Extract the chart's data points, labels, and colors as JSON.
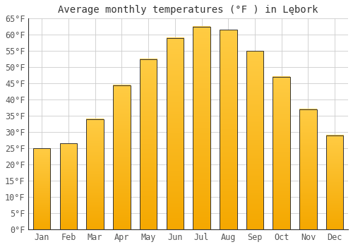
{
  "title": "Average monthly temperatures (°F ) in Lębork",
  "months": [
    "Jan",
    "Feb",
    "Mar",
    "Apr",
    "May",
    "Jun",
    "Jul",
    "Aug",
    "Sep",
    "Oct",
    "Nov",
    "Dec"
  ],
  "values": [
    25,
    26.5,
    34,
    44.5,
    52.5,
    59,
    62.5,
    61.5,
    55,
    47,
    37,
    29
  ],
  "bar_color_top": "#FFCC44",
  "bar_color_bottom": "#F5A800",
  "bar_edge_color": "#333333",
  "background_color": "#FFFFFF",
  "grid_color": "#CCCCCC",
  "ylim": [
    0,
    65
  ],
  "yticks": [
    0,
    5,
    10,
    15,
    20,
    25,
    30,
    35,
    40,
    45,
    50,
    55,
    60,
    65
  ],
  "title_fontsize": 10,
  "tick_fontsize": 8.5,
  "tick_font_family": "monospace",
  "bar_width": 0.65
}
